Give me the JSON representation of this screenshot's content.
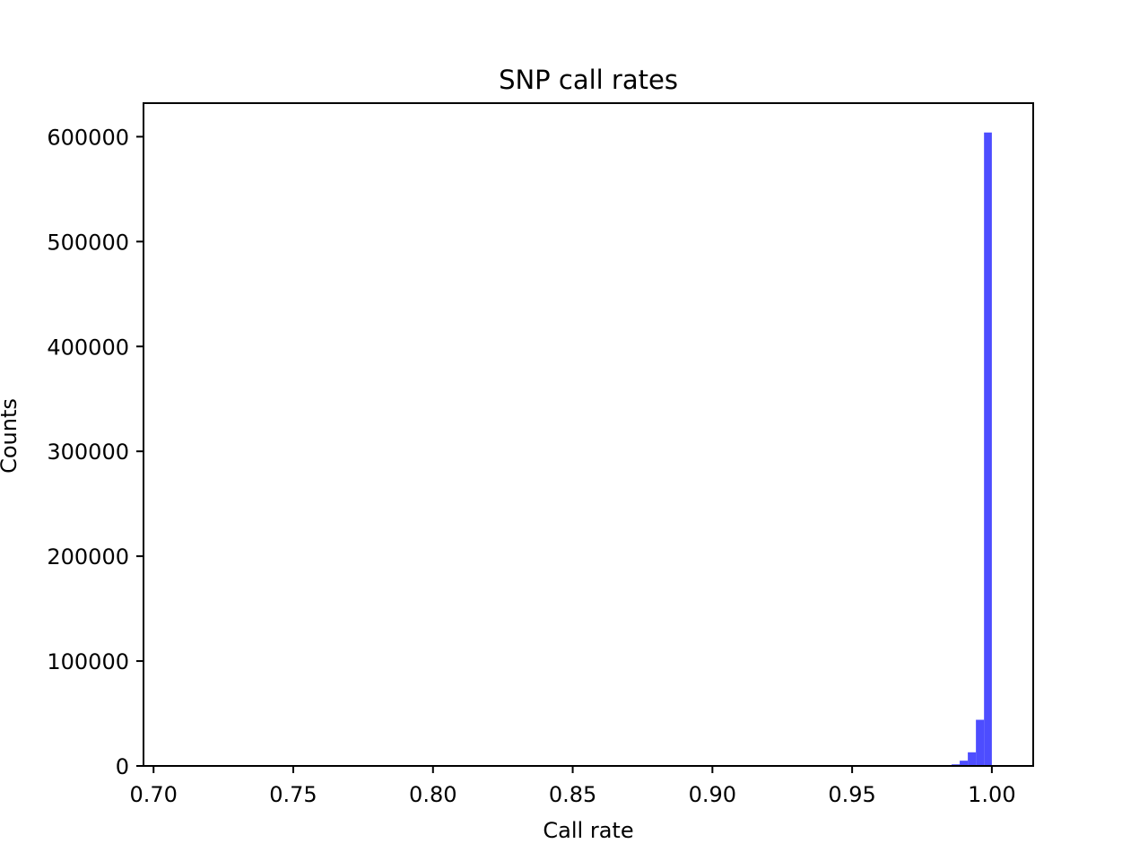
{
  "chart_data": {
    "type": "bar",
    "title": "SNP call rates",
    "xlabel": "Call rate",
    "ylabel": "Counts",
    "xlim": [
      0.6964,
      1.0148
    ],
    "ylim": [
      0,
      632000
    ],
    "xticks": [
      0.7,
      0.75,
      0.8,
      0.85,
      0.9,
      0.95,
      1.0
    ],
    "xtick_labels": [
      "0.70",
      "0.75",
      "0.80",
      "0.85",
      "0.90",
      "0.95",
      "1.00"
    ],
    "yticks": [
      0,
      100000,
      200000,
      300000,
      400000,
      500000,
      600000
    ],
    "ytick_labels": [
      "0",
      "100000",
      "200000",
      "300000",
      "400000",
      "500000",
      "600000"
    ],
    "grid": false,
    "bar_color": "#4d4dff",
    "bins": [
      {
        "x0": 0.9856,
        "x1": 0.9885,
        "count": 1500
      },
      {
        "x0": 0.9885,
        "x1": 0.9914,
        "count": 5000
      },
      {
        "x0": 0.9914,
        "x1": 0.9943,
        "count": 13000
      },
      {
        "x0": 0.9943,
        "x1": 0.9972,
        "count": 44000
      },
      {
        "x0": 0.9972,
        "x1": 1.0,
        "count": 604000
      }
    ]
  }
}
